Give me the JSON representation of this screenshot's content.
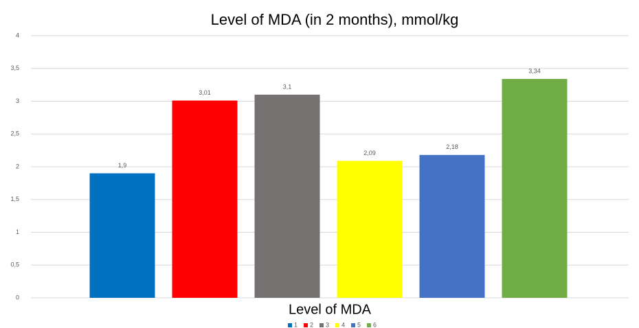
{
  "chart_data": {
    "type": "bar",
    "title": "Level of MDA (in 2 months), mmol/kg",
    "categories": [
      "Level of MDA"
    ],
    "series": [
      {
        "name": "1",
        "color": "#0070c0",
        "values": [
          1.9
        ],
        "value_labels": [
          "1,9"
        ]
      },
      {
        "name": "2",
        "color": "#ff0000",
        "values": [
          3.01
        ],
        "value_labels": [
          "3,01"
        ]
      },
      {
        "name": "3",
        "color": "#767171",
        "values": [
          3.1
        ],
        "value_labels": [
          "3,1"
        ]
      },
      {
        "name": "4",
        "color": "#ffff00",
        "values": [
          2.09
        ],
        "value_labels": [
          "2,09"
        ]
      },
      {
        "name": "5",
        "color": "#4472c4",
        "values": [
          2.18
        ],
        "value_labels": [
          "2,18"
        ]
      },
      {
        "name": "6",
        "color": "#70ad47",
        "values": [
          3.34
        ],
        "value_labels": [
          "3,34"
        ]
      }
    ],
    "ylim": [
      0,
      4
    ],
    "yticks": [
      0,
      {
        "value": 0.5,
        "label": "0,5"
      },
      1,
      {
        "value": 1.5,
        "label": "1,5"
      },
      2,
      {
        "value": 2.5,
        "label": "2,5"
      },
      3,
      {
        "value": 3.5,
        "label": "3,5"
      },
      4
    ],
    "grid": true,
    "legend": "bottom"
  }
}
